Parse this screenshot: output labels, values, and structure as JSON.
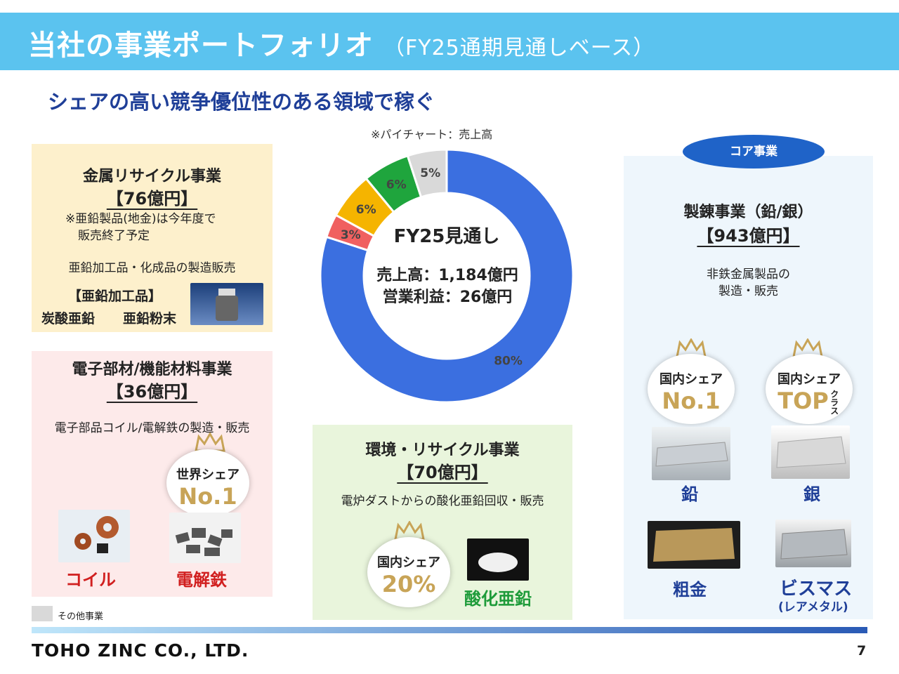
{
  "header": {
    "title": "当社の事業ポートフォリオ",
    "title_sub": "（FY25通期見通しベース）"
  },
  "subtitle": "シェアの高い競争優位性のある領域で稼ぐ",
  "pie_note": "※パイチャート：売上高",
  "chart_data": {
    "type": "pie",
    "categories": [
      "製錬事業（鉛/銀）",
      "電子部材/機能材料事業",
      "金属リサイクル事業",
      "環境・リサイクル事業",
      "その他事業"
    ],
    "values": [
      80,
      3,
      6,
      6,
      5
    ],
    "colors": [
      "#3b6fe0",
      "#f06060",
      "#f5b400",
      "#1fa53d",
      "#d9d9d9"
    ],
    "labels": [
      "80%",
      "3%",
      "6%",
      "6%",
      "5%"
    ]
  },
  "donut_center": {
    "title": "FY25見通し",
    "line1": "売上高：1,184億円",
    "line2": "営業利益：26億円"
  },
  "metal_recycle": {
    "title": "金属リサイクル事業",
    "amount": "【76億円】",
    "note1": "※亜鉛製品(地金)は今年度で",
    "note2": "販売終了予定",
    "desc": "亜鉛加工品・化成品の製造販売",
    "product_head": "【亜鉛加工品】",
    "product_a": "炭酸亜鉛",
    "product_b": "亜鉛粉末"
  },
  "electronic": {
    "title": "電子部材/機能材料事業",
    "amount": "【36億円】",
    "desc": "電子部品コイル/電解鉄の製造・販売",
    "badge_l1": "世界シェア",
    "badge_l2": "No.1",
    "coil": "コイル",
    "iron": "電解鉄"
  },
  "env": {
    "title": "環境・リサイクル事業",
    "amount": "【70億円】",
    "desc": "電炉ダストからの酸化亜鉛回収・販売",
    "badge_l1": "国内シェア",
    "badge_l2": "20%",
    "product": "酸化亜鉛"
  },
  "smelting": {
    "core_tag": "コア事業",
    "title": "製錬事業（鉛/銀）",
    "amount": "【943億円】",
    "desc1": "非鉄金属製品の",
    "desc2": "製造・販売",
    "badge1_l1": "国内シェア",
    "badge1_l2": "No.1",
    "badge2_l1": "国内シェア",
    "badge2_l2": "TOP",
    "badge2_small": "クラス",
    "lead": "鉛",
    "silver": "銀",
    "gold": "粗金",
    "bismuth": "ビスマス",
    "bismuth_sub": "(レアメタル)"
  },
  "legend_other": "その他事業",
  "footer": {
    "logo": "TOHO ZINC CO., LTD.",
    "page": "7"
  }
}
